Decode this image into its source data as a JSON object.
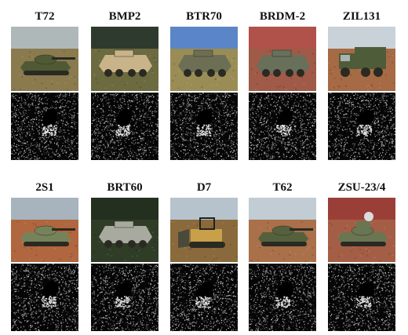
{
  "vehicles": [
    {
      "label": "T72",
      "kind": "tank",
      "sky": "#aeb8b8",
      "ground": "#8a7a4e",
      "body": "#4f5a34"
    },
    {
      "label": "BMP2",
      "kind": "ifv",
      "sky": "#2f3a2e",
      "ground": "#6c6a3f",
      "body": "#c9b48a"
    },
    {
      "label": "BTR70",
      "kind": "apc",
      "sky": "#5a86c8",
      "ground": "#9a8c55",
      "body": "#6c6f54"
    },
    {
      "label": "BRDM-2",
      "kind": "scout",
      "sky": "#b0514a",
      "ground": "#a05a48",
      "body": "#68705a"
    },
    {
      "label": "ZIL131",
      "kind": "truck",
      "sky": "#c8d2d8",
      "ground": "#a66a44",
      "body": "#4e5c3a"
    },
    {
      "label": "2S1",
      "kind": "spg",
      "sky": "#a7b3bd",
      "ground": "#b0663e",
      "body": "#76835a"
    },
    {
      "label": "BRT60",
      "kind": "apc",
      "sky": "#23301f",
      "ground": "#2f3d26",
      "body": "#a8aaa0"
    },
    {
      "label": "D7",
      "kind": "dozer",
      "sky": "#b6c3cd",
      "ground": "#8a6a3c",
      "body": "#3d3a30"
    },
    {
      "label": "T62",
      "kind": "tank",
      "sky": "#c1ccd4",
      "ground": "#a9704a",
      "body": "#55613c"
    },
    {
      "label": "ZSU-23/4",
      "kind": "aa",
      "sky": "#9a3f38",
      "ground": "#a55e46",
      "body": "#6a7552"
    }
  ]
}
